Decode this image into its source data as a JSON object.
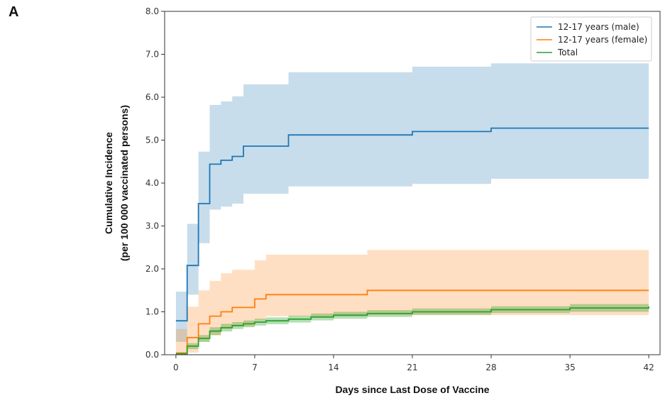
{
  "panel_label": "A",
  "chart_data": {
    "type": "line",
    "title": "",
    "xlabel": "Days since Last Dose of Vaccine",
    "ylabel_line1": "Cumulative Incidence",
    "ylabel_line2": "(per 100 000 vaccinated persons)",
    "xlim": [
      -1,
      43
    ],
    "ylim": [
      0,
      8
    ],
    "xticks": [
      0,
      7,
      14,
      21,
      28,
      35,
      42
    ],
    "xtick_labels": [
      "0",
      "7",
      "14",
      "21",
      "28",
      "35",
      "42"
    ],
    "yticks": [
      0,
      1,
      2,
      3,
      4,
      5,
      6,
      7,
      8
    ],
    "ytick_labels": [
      "0.0",
      "1.0",
      "2.0",
      "3.0",
      "4.0",
      "5.0",
      "6.0",
      "7.0",
      "8.0"
    ],
    "step": true,
    "legend_position": "top-right",
    "series": [
      {
        "name": "12-17 years (male)",
        "color": "#1f77b4",
        "band_color": "#1f77b4",
        "x": [
          0,
          1,
          2,
          3,
          4,
          5,
          6,
          10,
          21,
          28,
          42
        ],
        "y": [
          0.79,
          2.08,
          3.52,
          4.44,
          4.53,
          4.62,
          4.86,
          5.12,
          5.2,
          5.28,
          5.28
        ],
        "lower": [
          0.3,
          1.4,
          2.6,
          3.38,
          3.45,
          3.52,
          3.75,
          3.92,
          3.98,
          4.1,
          4.1
        ],
        "upper": [
          1.47,
          3.05,
          4.73,
          5.82,
          5.9,
          6.02,
          6.3,
          6.58,
          6.71,
          6.79,
          6.79
        ]
      },
      {
        "name": "12-17 years (female)",
        "color": "#ff7f0e",
        "band_color": "#ff7f0e",
        "x": [
          0,
          1,
          2,
          3,
          4,
          5,
          7,
          8,
          17,
          42
        ],
        "y": [
          0.04,
          0.4,
          0.72,
          0.9,
          1.0,
          1.1,
          1.3,
          1.4,
          1.5,
          1.5
        ],
        "lower": [
          0.0,
          0.05,
          0.3,
          0.45,
          0.6,
          0.66,
          0.8,
          0.9,
          0.92,
          0.92
        ],
        "upper": [
          0.6,
          1.12,
          1.5,
          1.72,
          1.9,
          1.98,
          2.2,
          2.33,
          2.44,
          2.44
        ]
      },
      {
        "name": "Total",
        "color": "#2ca02c",
        "band_color": "#2ca02c",
        "x": [
          0,
          1,
          2,
          3,
          4,
          5,
          6,
          7,
          8,
          10,
          12,
          14,
          17,
          21,
          28,
          35,
          42
        ],
        "y": [
          0.02,
          0.2,
          0.38,
          0.55,
          0.63,
          0.68,
          0.72,
          0.76,
          0.79,
          0.83,
          0.88,
          0.92,
          0.96,
          1.0,
          1.05,
          1.09,
          1.12
        ],
        "lower": [
          0.0,
          0.13,
          0.3,
          0.46,
          0.54,
          0.6,
          0.64,
          0.68,
          0.71,
          0.75,
          0.8,
          0.84,
          0.88,
          0.93,
          0.97,
          1.0,
          1.04
        ],
        "upper": [
          0.06,
          0.27,
          0.46,
          0.64,
          0.72,
          0.76,
          0.8,
          0.84,
          0.87,
          0.91,
          0.96,
          1.0,
          1.04,
          1.08,
          1.13,
          1.18,
          1.2
        ]
      }
    ]
  }
}
